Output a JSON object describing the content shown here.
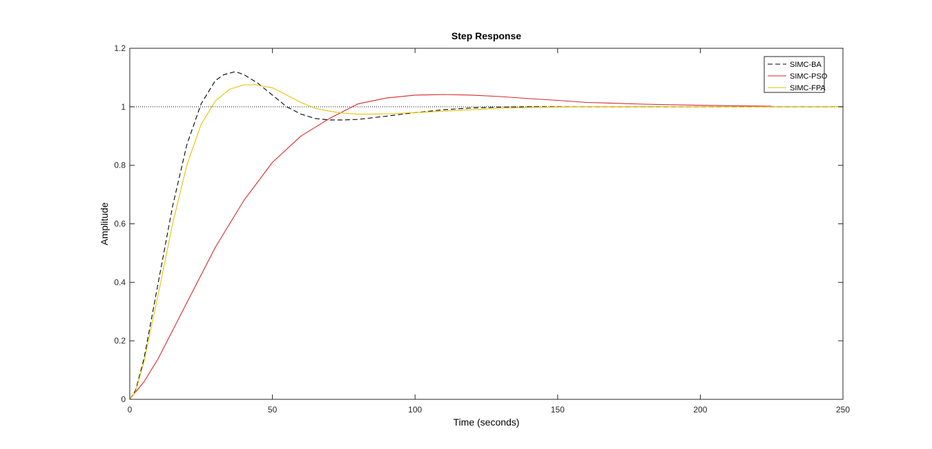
{
  "chart_data": {
    "type": "line",
    "title": "Step Response",
    "xlabel": "Time (seconds)",
    "ylabel": "Amplitude",
    "xlim": [
      0,
      250
    ],
    "ylim": [
      0,
      1.2
    ],
    "xticks": [
      0,
      50,
      100,
      150,
      200,
      250
    ],
    "yticks": [
      0,
      0.2,
      0.4,
      0.6,
      0.8,
      1,
      1.2
    ],
    "xtick_labels": [
      "0",
      "50",
      "100",
      "150",
      "200",
      "250"
    ],
    "ytick_labels": [
      "0",
      "0.2",
      "0.4",
      "0.6",
      "0.8",
      "1",
      "1.2"
    ],
    "grid": false,
    "legend_position": "top-right",
    "reference_line": {
      "y": 1,
      "style": "dotted",
      "color": "#000000"
    },
    "series": [
      {
        "name": "SIMC-BA",
        "color": "#000000",
        "dash": "dashed",
        "x": [
          0,
          2,
          5,
          10,
          15,
          20,
          25,
          30,
          33,
          37,
          40,
          45,
          50,
          55,
          60,
          65,
          70,
          75,
          80,
          90,
          100,
          110,
          120,
          130,
          140,
          150,
          175,
          200,
          225,
          250
        ],
        "y": [
          0,
          0.03,
          0.14,
          0.4,
          0.66,
          0.87,
          1.01,
          1.09,
          1.11,
          1.12,
          1.11,
          1.08,
          1.04,
          1.0,
          0.975,
          0.96,
          0.955,
          0.955,
          0.957,
          0.968,
          0.98,
          0.99,
          0.996,
          0.999,
          1.0,
          1.0,
          1.0,
          1.0,
          1.0,
          1.0
        ]
      },
      {
        "name": "SIMC-PSO",
        "color": "#d62728",
        "dash": "solid",
        "x": [
          0,
          5,
          10,
          20,
          30,
          40,
          50,
          60,
          70,
          80,
          90,
          100,
          110,
          120,
          130,
          140,
          150,
          160,
          180,
          200,
          225
        ],
        "y": [
          0,
          0.06,
          0.14,
          0.33,
          0.52,
          0.68,
          0.81,
          0.9,
          0.96,
          1.01,
          1.03,
          1.04,
          1.042,
          1.04,
          1.035,
          1.028,
          1.022,
          1.015,
          1.009,
          1.005,
          1.002
        ]
      },
      {
        "name": "SIMC-FPA",
        "color": "#e6c200",
        "dash": "solid",
        "x": [
          0,
          2,
          5,
          10,
          15,
          20,
          25,
          30,
          35,
          40,
          44,
          50,
          55,
          60,
          65,
          70,
          75,
          80,
          85,
          90,
          100,
          110,
          120,
          130,
          140,
          160,
          200,
          250
        ],
        "y": [
          0,
          0.025,
          0.13,
          0.36,
          0.6,
          0.8,
          0.94,
          1.02,
          1.06,
          1.075,
          1.075,
          1.065,
          1.04,
          1.015,
          0.995,
          0.985,
          0.978,
          0.975,
          0.975,
          0.976,
          0.98,
          0.985,
          0.99,
          0.995,
          0.998,
          1.0,
          1.0,
          1.0
        ]
      }
    ]
  }
}
